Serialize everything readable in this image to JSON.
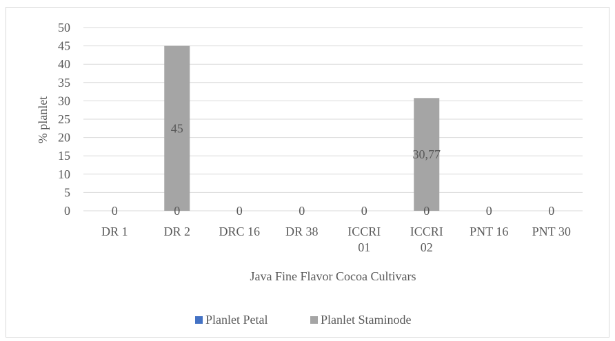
{
  "chart_data": {
    "type": "bar",
    "title": "",
    "xlabel": "Java Fine Flavor Cocoa Cultivars",
    "ylabel": "% planlet",
    "ylim": [
      0,
      50
    ],
    "yticks": [
      "0",
      "5",
      "10",
      "15",
      "20",
      "25",
      "30",
      "35",
      "40",
      "45",
      "50"
    ],
    "categories": [
      [
        "DR 1"
      ],
      [
        "DR 2"
      ],
      [
        "DRC 16"
      ],
      [
        "DR 38"
      ],
      [
        "ICCRI",
        "01"
      ],
      [
        "ICCRI",
        "02"
      ],
      [
        "PNT 16"
      ],
      [
        "PNT 30"
      ]
    ],
    "series": [
      {
        "name": "Planlet Petal",
        "color": "#4472c4",
        "values": [
          0,
          0,
          0,
          0,
          0,
          0,
          0,
          0
        ],
        "labels": [
          "0",
          "0",
          "0",
          "0",
          "0",
          "0",
          "0",
          "0"
        ]
      },
      {
        "name": "Planlet Staminode",
        "color": "#a5a5a5",
        "values": [
          0,
          45,
          0,
          0,
          0,
          30.77,
          0,
          0
        ],
        "labels": [
          "",
          "45",
          "",
          "",
          "",
          "30,77",
          "",
          ""
        ]
      }
    ],
    "grid": true,
    "legend_position": "bottom"
  }
}
